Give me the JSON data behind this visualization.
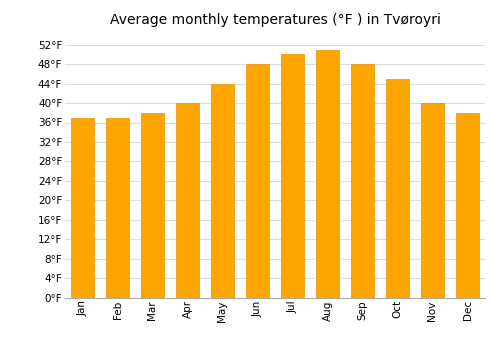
{
  "title": "Average monthly temperatures (°F ) in Tvøroyri",
  "months": [
    "Jan",
    "Feb",
    "Mar",
    "Apr",
    "May",
    "Jun",
    "Jul",
    "Aug",
    "Sep",
    "Oct",
    "Nov",
    "Dec"
  ],
  "values": [
    37,
    37,
    38,
    40,
    44,
    48,
    50,
    51,
    48,
    45,
    40,
    38
  ],
  "bar_color_top": "#FFB400",
  "bar_color_bottom": "#FFA500",
  "bar_edge_color": "#E89400",
  "ylim": [
    0,
    54
  ],
  "yticks": [
    0,
    4,
    8,
    12,
    16,
    20,
    24,
    28,
    32,
    36,
    40,
    44,
    48,
    52
  ],
  "ytick_labels": [
    "0°F",
    "4°F",
    "8°F",
    "12°F",
    "16°F",
    "20°F",
    "24°F",
    "28°F",
    "32°F",
    "36°F",
    "40°F",
    "44°F",
    "48°F",
    "52°F"
  ],
  "grid_color": "#dddddd",
  "bg_color": "#ffffff",
  "title_fontsize": 10,
  "tick_fontsize": 7.5,
  "bar_width": 0.65
}
